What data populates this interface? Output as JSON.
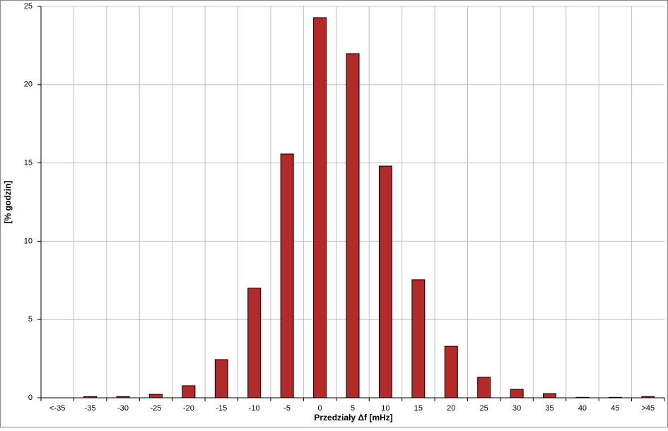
{
  "chart_data": {
    "type": "bar",
    "x_label": "Przedziały Δf [mHz]",
    "y_label": "[% godzin]",
    "categories": [
      "<-35",
      "-35",
      "-30",
      "-25",
      "-20",
      "-15",
      "-10",
      "-5",
      "0",
      "5",
      "10",
      "15",
      "20",
      "25",
      "30",
      "35",
      "40",
      "45",
      ">45"
    ],
    "values": [
      0,
      0.08,
      0.08,
      0.22,
      0.77,
      2.44,
      7.0,
      15.57,
      24.28,
      21.98,
      14.8,
      7.54,
      3.29,
      1.31,
      0.54,
      0.27,
      0.03,
      0.03,
      0.08
    ],
    "color": "#b22a2a",
    "ylim": [
      0,
      25
    ],
    "yticks": [
      0,
      5,
      10,
      15,
      20,
      25
    ],
    "grid": true
  }
}
